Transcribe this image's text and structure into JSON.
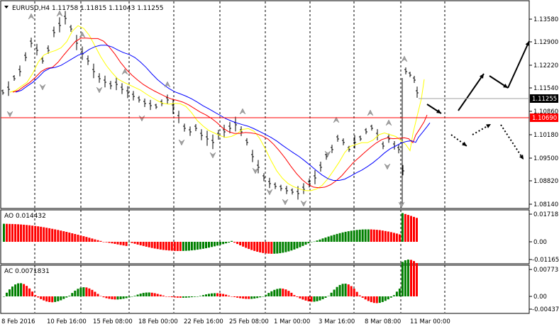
{
  "main": {
    "symbol_header": "EURUSD,H4  1.11758 1.11815 1.11043 1.11255",
    "price_ticks": [
      "1.13580",
      "1.12900",
      "1.12220",
      "1.11540",
      "1.10860",
      "1.10180",
      "1.09500",
      "1.08820",
      "1.08140"
    ],
    "current_price_label": "1.11255",
    "level_label": "1.10690",
    "colors": {
      "level_line": "#ff0000",
      "level_tag": "#ff0000",
      "price_tag": "#000000",
      "ma_fast": "#ffff00",
      "ma_mid": "#ff0000",
      "ma_slow": "#0000ff",
      "up_bar": "#008000",
      "down_bar": "#ff0000"
    }
  },
  "ao": {
    "label": "AO 0.014432",
    "ticks": [
      "0.01718",
      "0.00",
      "-0.011651"
    ]
  },
  "ac": {
    "label": "AC 0.0071831",
    "ticks": [
      "0.00773",
      "0.00",
      "-0.004375"
    ]
  },
  "time_axis": [
    "8 Feb 2016",
    "10 Feb 16:00",
    "15 Feb 08:00",
    "18 Feb 00:00",
    "22 Feb 16:00",
    "25 Feb 08:00",
    "1 Mar 00:00",
    "3 Mar 16:00",
    "8 Mar 08:00",
    "11 Mar 00:00"
  ],
  "icons": {
    "dropdown": "triangle-down-icon",
    "fractal_up": "fractal-up-icon",
    "fractal_down": "fractal-down-icon",
    "scenario_arrows": "arrow-icon"
  }
}
